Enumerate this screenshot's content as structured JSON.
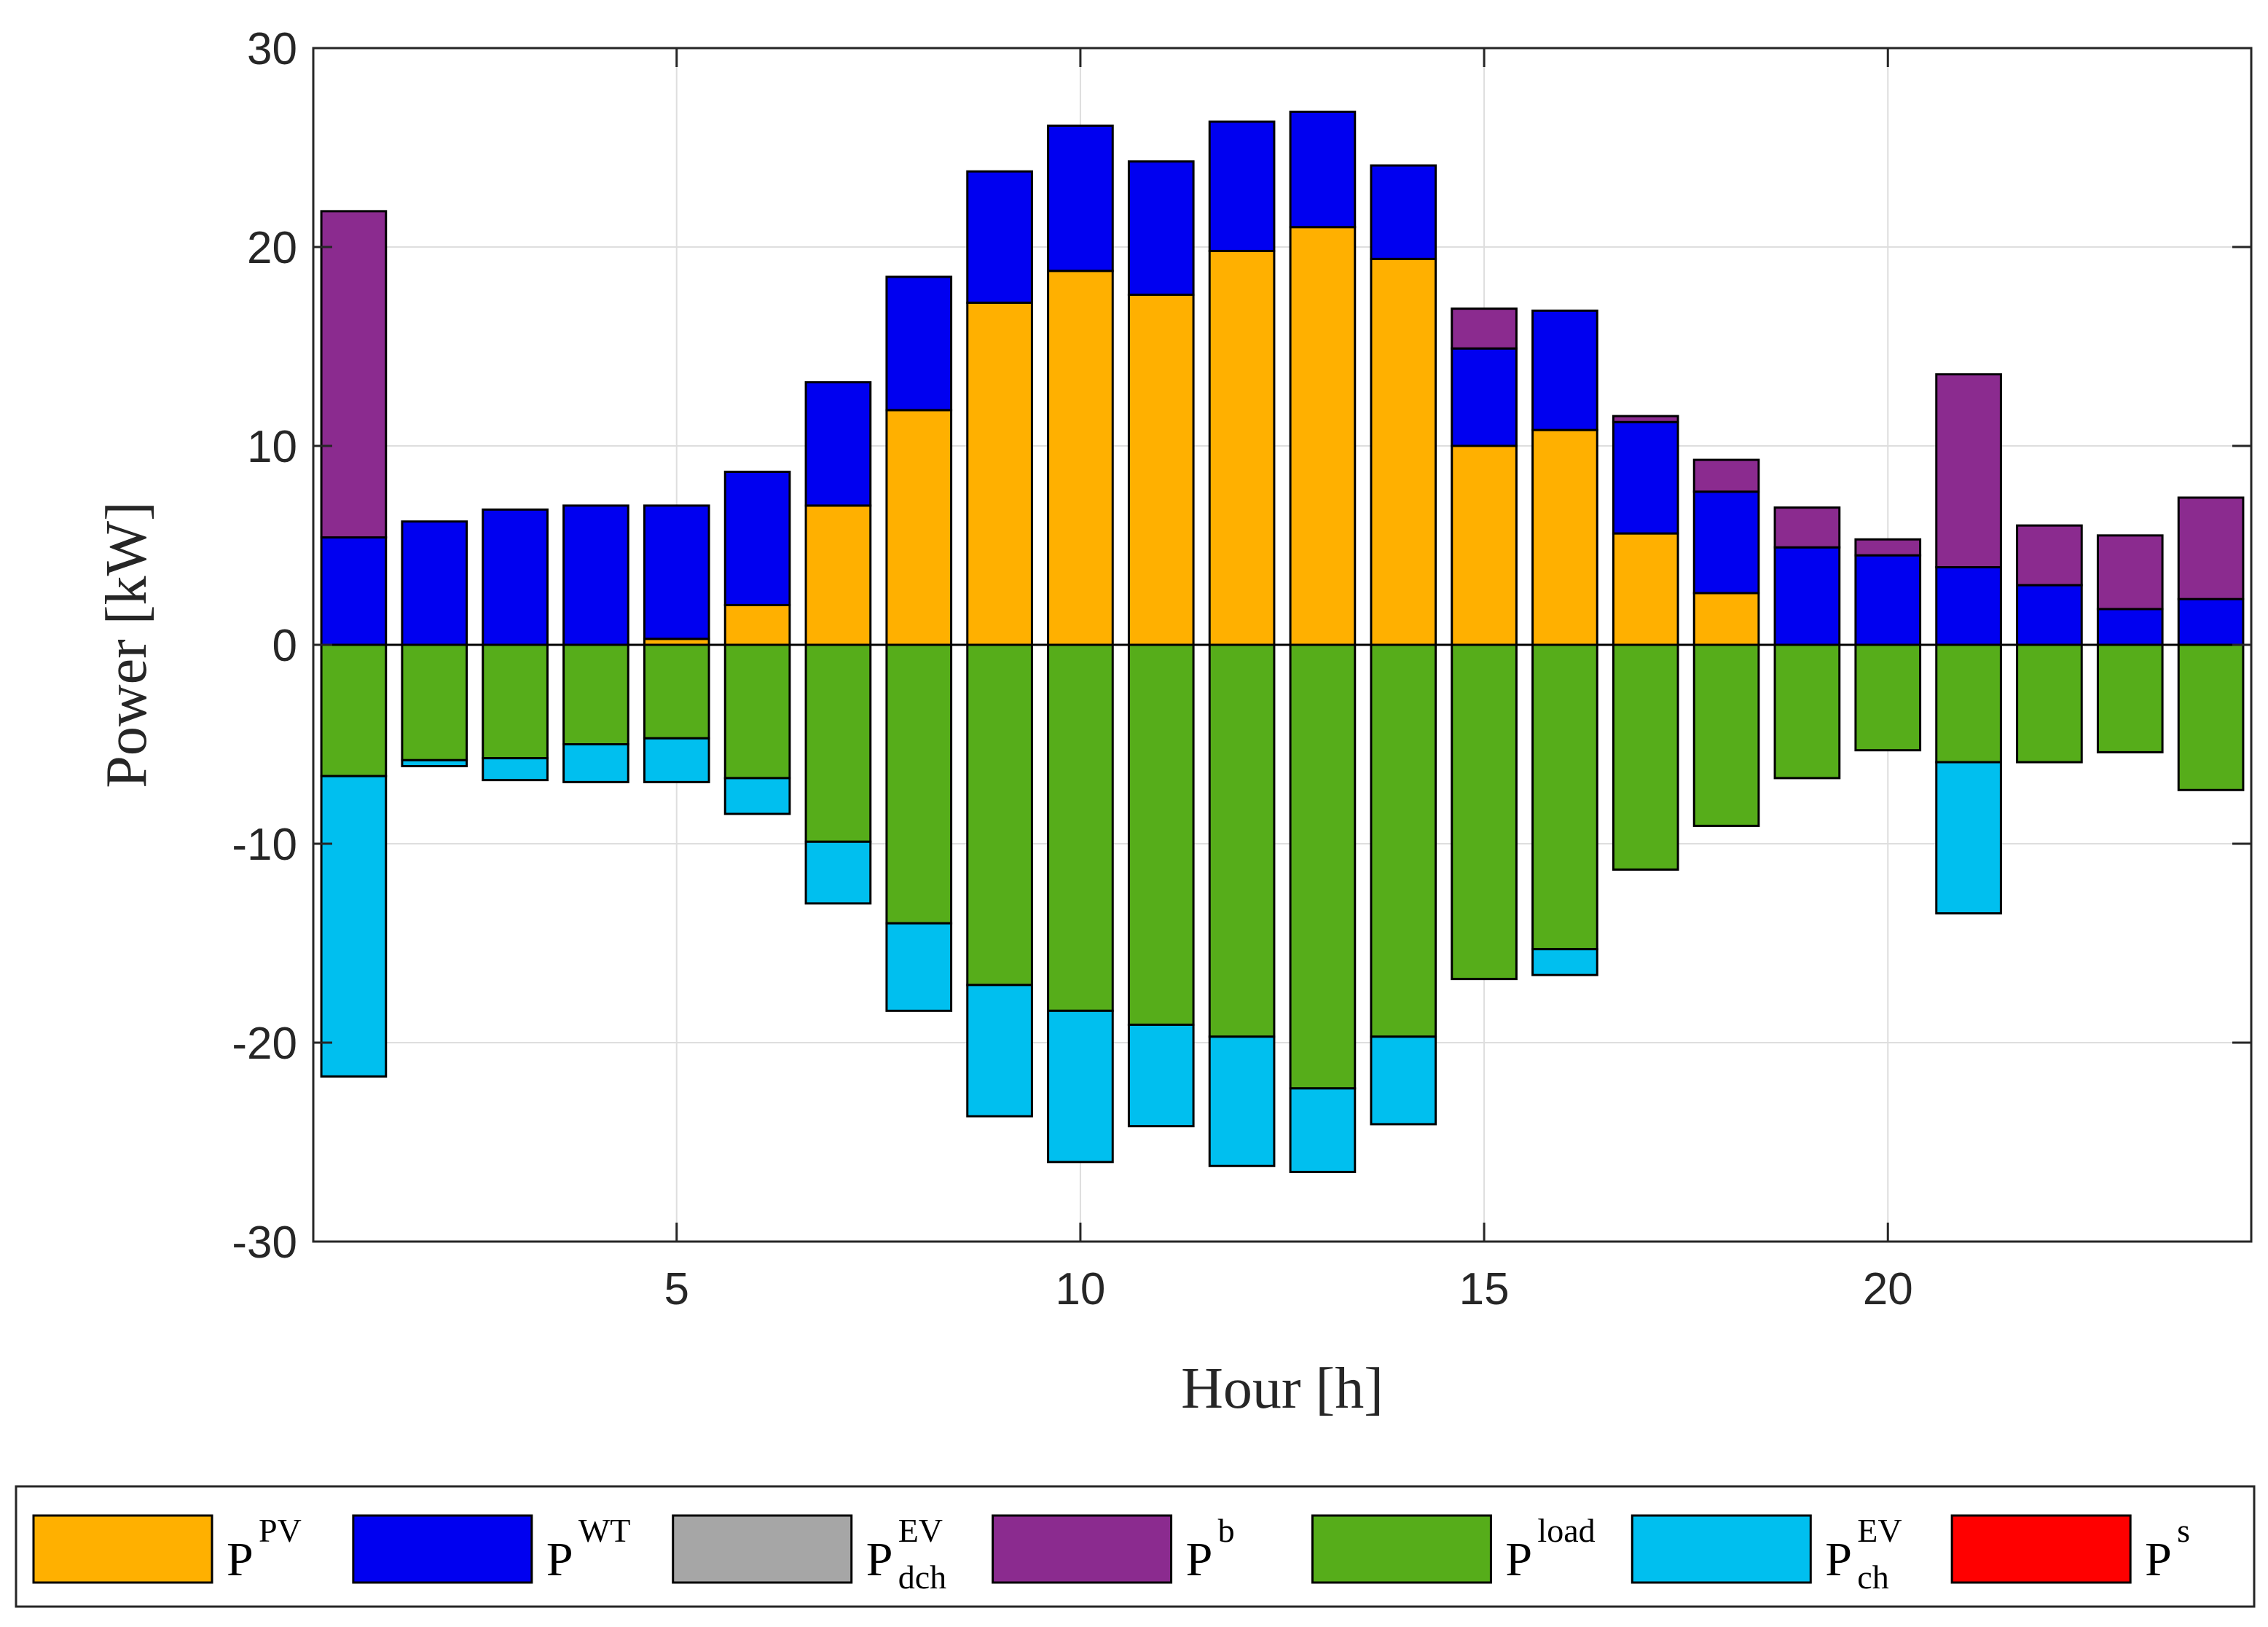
{
  "chart_data": {
    "type": "bar",
    "stacked": true,
    "xlabel": "Hour [h]",
    "ylabel": "Power [kW]",
    "xlim": [
      0.5,
      24.5
    ],
    "ylim": [
      -30,
      30
    ],
    "xticks": [
      5,
      10,
      15,
      20
    ],
    "yticks": [
      -30,
      -20,
      -10,
      0,
      10,
      20,
      30
    ],
    "grid": true,
    "legend_position": "bottom",
    "categories": [
      1,
      2,
      3,
      4,
      5,
      6,
      7,
      8,
      9,
      10,
      11,
      12,
      13,
      14,
      15,
      16,
      17,
      18,
      19,
      20,
      21,
      22,
      23,
      24
    ],
    "series": [
      {
        "key": "pv",
        "base": "P",
        "sup": "PV",
        "sub": "",
        "color": "#FFB000",
        "values": [
          0,
          0,
          0,
          0,
          0.3,
          2,
          7,
          11.8,
          17.2,
          18.8,
          17.6,
          19.8,
          21,
          19.4,
          10,
          10.8,
          5.6,
          2.6,
          0,
          0,
          0,
          0,
          0,
          0
        ]
      },
      {
        "key": "wt",
        "base": "P",
        "sup": "WT",
        "sub": "",
        "color": "#0000F0",
        "values": [
          5.4,
          6.2,
          6.8,
          7,
          6.7,
          6.7,
          6.2,
          6.7,
          6.6,
          7.3,
          6.7,
          6.5,
          5.8,
          4.7,
          4.9,
          6,
          5.6,
          5.1,
          4.9,
          4.5,
          3.9,
          3,
          1.8,
          2.3
        ]
      },
      {
        "key": "dch",
        "base": "P",
        "sup": "EV",
        "sub": "dch",
        "color": "#A6A6A6",
        "values": [
          0,
          0,
          0,
          0,
          0,
          0,
          0,
          0,
          0,
          0,
          0,
          0,
          0,
          0,
          0,
          0,
          0,
          0,
          0,
          0,
          0,
          0,
          0,
          0
        ]
      },
      {
        "key": "b",
        "base": "P",
        "sup": "b",
        "sub": "",
        "color": "#8B2B8F",
        "values": [
          16.4,
          0,
          0,
          0,
          0,
          0,
          0,
          0,
          0,
          0,
          0,
          0,
          0,
          0,
          2,
          0,
          0.3,
          1.6,
          2,
          0.8,
          9.7,
          3,
          3.7,
          5.1
        ]
      },
      {
        "key": "load",
        "base": "P",
        "sup": "load",
        "sub": "",
        "color": "#56AD1A",
        "values": [
          -6.6,
          -5.8,
          -5.7,
          -5,
          -4.7,
          -6.7,
          -9.9,
          -14,
          -17.1,
          -18.4,
          -19.1,
          -19.7,
          -22.3,
          -19.7,
          -16.8,
          -15.3,
          -11.3,
          -9.1,
          -6.7,
          -5.3,
          -5.9,
          -5.9,
          -5.4,
          -7.3
        ]
      },
      {
        "key": "ch",
        "base": "P",
        "sup": "EV",
        "sub": "ch",
        "color": "#00BFEF",
        "values": [
          -15.1,
          -0.3,
          -1.1,
          -1.9,
          -2.2,
          -1.8,
          -3.1,
          -4.4,
          -6.6,
          -7.6,
          -5.1,
          -6.5,
          -4.2,
          -4.4,
          0,
          -1.3,
          0,
          0,
          0,
          0,
          -7.6,
          0,
          0,
          0
        ]
      },
      {
        "key": "s",
        "base": "P",
        "sup": "s",
        "sub": "",
        "color": "#FF0000",
        "values": [
          0,
          0,
          0,
          0,
          0,
          0,
          0,
          0,
          0,
          0,
          0,
          0,
          0,
          0,
          0,
          0,
          0,
          0,
          0,
          0,
          0,
          0,
          0,
          0
        ]
      }
    ]
  }
}
